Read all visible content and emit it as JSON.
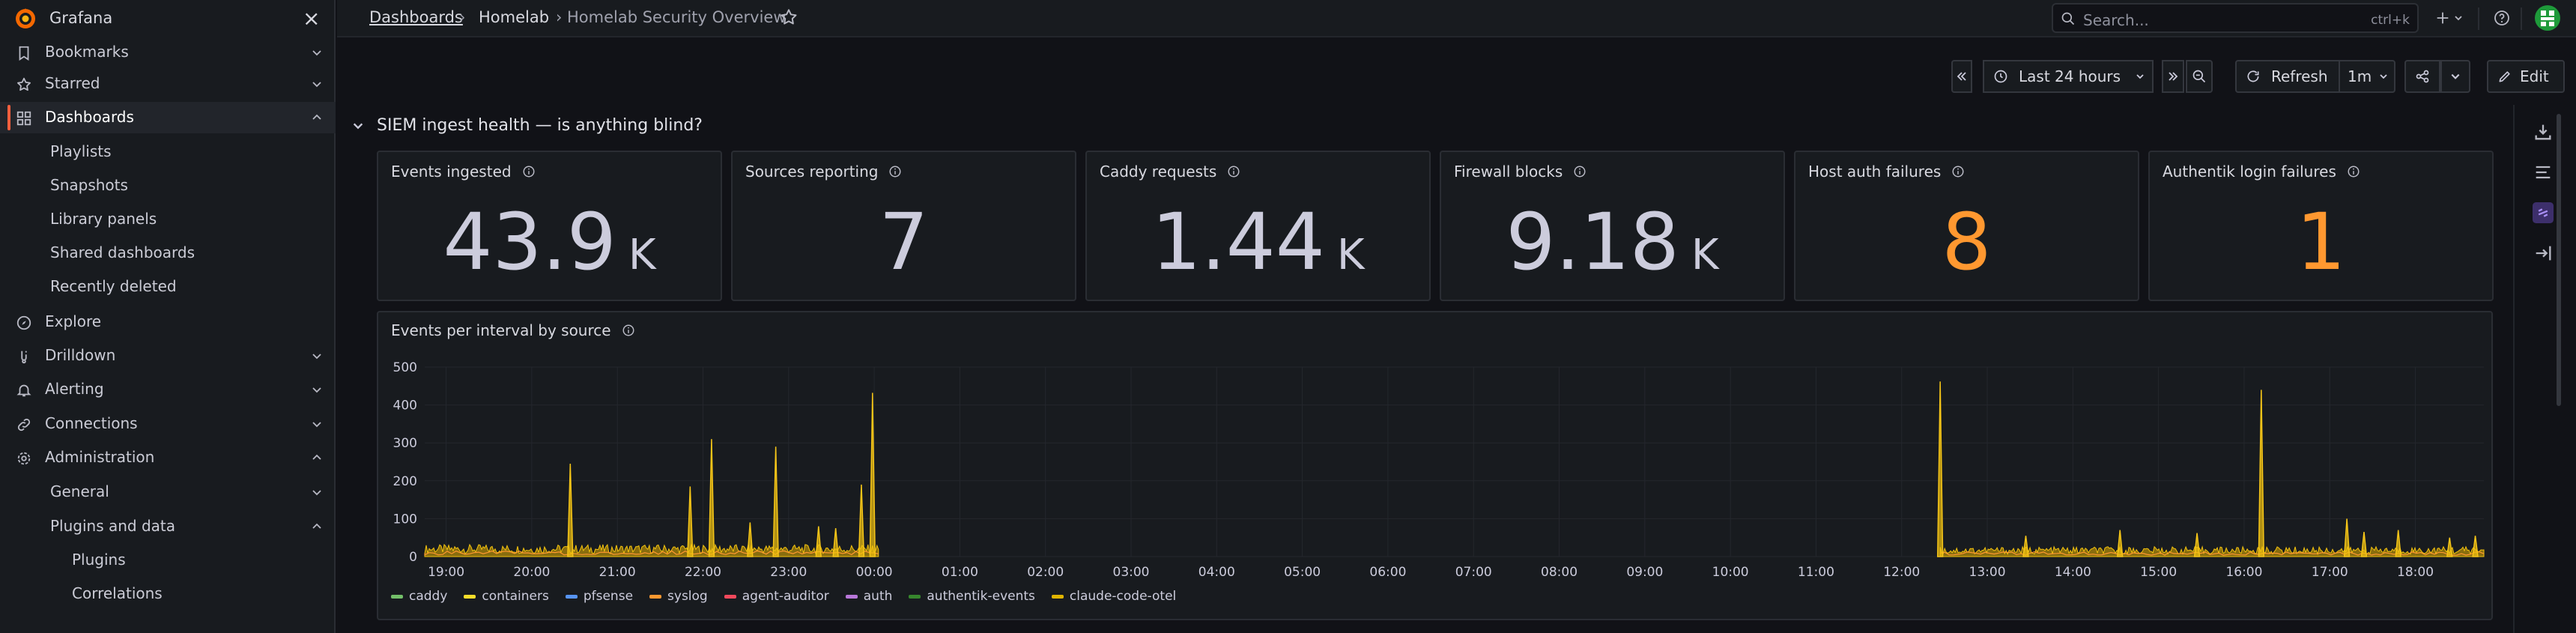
{
  "app": {
    "name": "Grafana",
    "logo_icon": "grafana-logo-icon"
  },
  "colors": {
    "accent": "#f55f3e",
    "warning": "#ff9830",
    "bg": "#111217",
    "panel": "#181b1f"
  },
  "sidebar": {
    "items": [
      {
        "label": "Bookmarks",
        "icon": "bookmark-icon",
        "chevron": "down"
      },
      {
        "label": "Starred",
        "icon": "star-icon",
        "chevron": "down"
      },
      {
        "label": "Dashboards",
        "icon": "apps-icon",
        "chevron": "up",
        "active": true
      },
      {
        "label": "Playlists"
      },
      {
        "label": "Snapshots"
      },
      {
        "label": "Library panels"
      },
      {
        "label": "Shared dashboards"
      },
      {
        "label": "Recently deleted"
      },
      {
        "label": "Explore",
        "icon": "compass-icon"
      },
      {
        "label": "Drilldown",
        "icon": "drilldown-icon",
        "chevron": "down"
      },
      {
        "label": "Alerting",
        "icon": "bell-icon",
        "chevron": "down"
      },
      {
        "label": "Connections",
        "icon": "link-icon",
        "chevron": "down"
      },
      {
        "label": "Administration",
        "icon": "cog-icon",
        "chevron": "up"
      },
      {
        "label": "General",
        "chevron": "down"
      },
      {
        "label": "Plugins and data",
        "chevron": "up"
      },
      {
        "label": "Plugins"
      },
      {
        "label": "Correlations"
      }
    ]
  },
  "topbar": {
    "breadcrumbs": [
      "Dashboards",
      "Homelab",
      "Homelab Security Overview"
    ],
    "search_placeholder": "Search...",
    "search_shortcut": "ctrl+k"
  },
  "controls": {
    "time_range": "Last 24 hours",
    "refresh_label": "Refresh",
    "refresh_interval": "1m",
    "edit_label": "Edit"
  },
  "row": {
    "title": "SIEM ingest health — is anything blind?"
  },
  "stats": [
    {
      "title": "Events ingested",
      "value": "43.9",
      "unit": "K",
      "warn": false
    },
    {
      "title": "Sources reporting",
      "value": "7",
      "unit": "",
      "warn": false
    },
    {
      "title": "Caddy requests",
      "value": "1.44",
      "unit": "K",
      "warn": false
    },
    {
      "title": "Firewall blocks",
      "value": "9.18",
      "unit": "K",
      "warn": false
    },
    {
      "title": "Host auth failures",
      "value": "8",
      "unit": "",
      "warn": true
    },
    {
      "title": "Authentik login failures",
      "value": "1",
      "unit": "",
      "warn": true
    }
  ],
  "timeseries": {
    "title": "Events per interval by source"
  },
  "chart_data": {
    "type": "area",
    "title": "Events per interval by source",
    "xlabel": "",
    "ylabel": "",
    "ylim": [
      0,
      500
    ],
    "y_ticks": [
      0,
      100,
      200,
      300,
      400,
      500
    ],
    "x_ticks": [
      "19:00",
      "20:00",
      "21:00",
      "22:00",
      "23:00",
      "00:00",
      "01:00",
      "02:00",
      "03:00",
      "04:00",
      "05:00",
      "06:00",
      "07:00",
      "08:00",
      "09:00",
      "10:00",
      "11:00",
      "12:00",
      "13:00",
      "14:00",
      "15:00",
      "16:00",
      "17:00",
      "18:00"
    ],
    "x_range_hours": [
      18.75,
      42.8
    ],
    "baseline": [
      {
        "from": 18.75,
        "to": 24.05,
        "level": 22
      },
      {
        "from": 36.45,
        "to": 42.8,
        "level": 18
      }
    ],
    "spikes": [
      {
        "x": 20.45,
        "y": 245,
        "series": "containers"
      },
      {
        "x": 21.85,
        "y": 185,
        "series": "containers"
      },
      {
        "x": 22.1,
        "y": 310,
        "series": "containers"
      },
      {
        "x": 22.55,
        "y": 90,
        "series": "containers"
      },
      {
        "x": 22.85,
        "y": 290,
        "series": "containers"
      },
      {
        "x": 23.35,
        "y": 80,
        "series": "containers"
      },
      {
        "x": 23.55,
        "y": 75,
        "series": "containers"
      },
      {
        "x": 23.85,
        "y": 190,
        "series": "containers"
      },
      {
        "x": 23.98,
        "y": 432,
        "series": "containers"
      },
      {
        "x": 36.45,
        "y": 462,
        "series": "containers"
      },
      {
        "x": 37.45,
        "y": 55,
        "series": "containers"
      },
      {
        "x": 38.55,
        "y": 70,
        "series": "containers"
      },
      {
        "x": 39.45,
        "y": 62,
        "series": "containers"
      },
      {
        "x": 40.2,
        "y": 440,
        "series": "containers"
      },
      {
        "x": 41.2,
        "y": 100,
        "series": "containers"
      },
      {
        "x": 41.4,
        "y": 65,
        "series": "containers"
      },
      {
        "x": 41.8,
        "y": 70,
        "series": "containers"
      },
      {
        "x": 42.4,
        "y": 50,
        "series": "containers"
      },
      {
        "x": 42.7,
        "y": 55,
        "series": "containers"
      }
    ],
    "series": [
      {
        "name": "caddy",
        "color": "#73bf69"
      },
      {
        "name": "containers",
        "color": "#fade2a"
      },
      {
        "name": "pfsense",
        "color": "#5794f2"
      },
      {
        "name": "syslog",
        "color": "#ff9830"
      },
      {
        "name": "agent-auditor",
        "color": "#f2495c"
      },
      {
        "name": "auth",
        "color": "#b877d9"
      },
      {
        "name": "authentik-events",
        "color": "#37872d"
      },
      {
        "name": "claude-code-otel",
        "color": "#e0b400"
      }
    ]
  }
}
